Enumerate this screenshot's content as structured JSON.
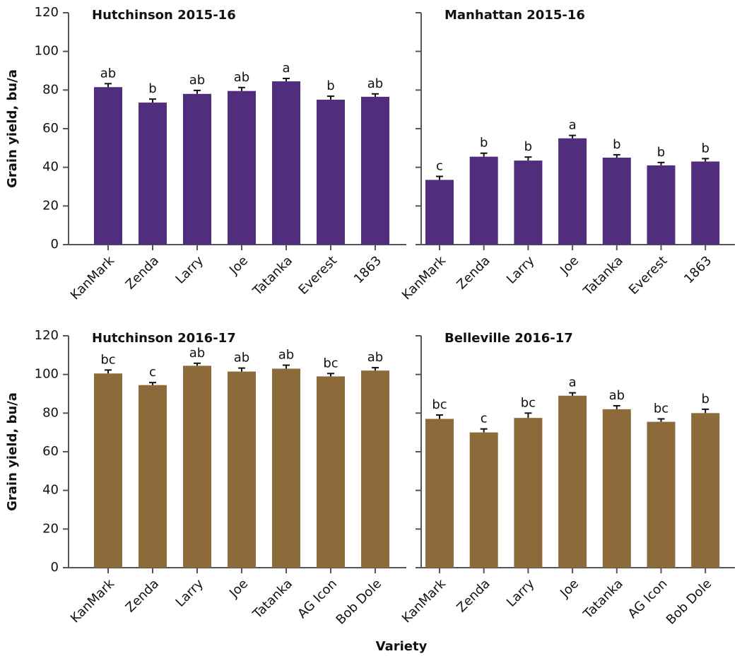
{
  "x_label": "Variety",
  "chart_data": [
    {
      "type": "bar",
      "title": "Hutchinson 2015-16",
      "y_label": "Grain yield, bu/a",
      "color": "#512d7e",
      "categories": [
        "KanMark",
        "Zenda",
        "Larry",
        "Joe",
        "Tatanka",
        "Everest",
        "1863"
      ],
      "values": [
        81.5,
        73.5,
        78,
        79.5,
        84.5,
        75,
        76.5
      ],
      "errors": [
        1.8,
        1.8,
        1.8,
        1.8,
        1.5,
        1.8,
        1.5
      ],
      "annotations": [
        "ab",
        "b",
        "ab",
        "ab",
        "a",
        "b",
        "ab"
      ],
      "ylim": [
        0,
        120
      ],
      "yticks": [
        0,
        20,
        40,
        60,
        80,
        100,
        120
      ],
      "show_ytick_labels": true
    },
    {
      "type": "bar",
      "title": "Manhattan 2015-16",
      "color": "#512d7e",
      "categories": [
        "KanMark",
        "Zenda",
        "Larry",
        "Joe",
        "Tatanka",
        "Everest",
        "1863"
      ],
      "values": [
        33.5,
        45.5,
        43.5,
        55,
        45,
        41,
        43
      ],
      "errors": [
        1.8,
        1.8,
        1.8,
        1.5,
        1.5,
        1.5,
        1.5
      ],
      "annotations": [
        "c",
        "b",
        "b",
        "a",
        "b",
        "b",
        "b"
      ],
      "ylim": [
        0,
        120
      ],
      "yticks": [
        0,
        20,
        40,
        60,
        80,
        100,
        120
      ],
      "show_ytick_labels": false
    },
    {
      "type": "bar",
      "title": "Hutchinson 2016-17",
      "y_label": "Grain yield, bu/a",
      "color": "#8c6a3a",
      "categories": [
        "KanMark",
        "Zenda",
        "Larry",
        "Joe",
        "Tatanka",
        "AG Icon",
        "Bob Dole"
      ],
      "values": [
        100.5,
        94.5,
        104.5,
        101.5,
        103,
        99,
        102
      ],
      "errors": [
        1.8,
        1.3,
        1.3,
        1.8,
        1.8,
        1.5,
        1.5
      ],
      "annotations": [
        "bc",
        "c",
        "ab",
        "ab",
        "ab",
        "bc",
        "ab"
      ],
      "ylim": [
        0,
        120
      ],
      "yticks": [
        0,
        20,
        40,
        60,
        80,
        100,
        120
      ],
      "show_ytick_labels": true
    },
    {
      "type": "bar",
      "title": "Belleville 2016-17",
      "color": "#8c6a3a",
      "categories": [
        "KanMark",
        "Zenda",
        "Larry",
        "Joe",
        "Tatanka",
        "AG Icon",
        "Bob Dole"
      ],
      "values": [
        77,
        70,
        77.5,
        89,
        82,
        75.5,
        80
      ],
      "errors": [
        2,
        1.8,
        2.5,
        1.5,
        1.8,
        1.5,
        2
      ],
      "annotations": [
        "bc",
        "c",
        "bc",
        "a",
        "ab",
        "bc",
        "b"
      ],
      "ylim": [
        0,
        120
      ],
      "yticks": [
        0,
        20,
        40,
        60,
        80,
        100,
        120
      ],
      "show_ytick_labels": false
    }
  ]
}
